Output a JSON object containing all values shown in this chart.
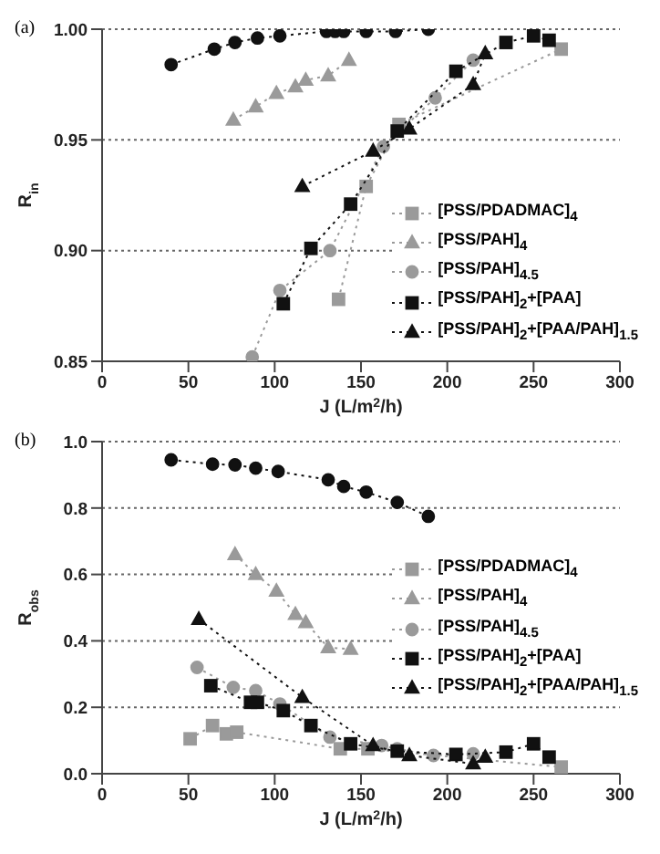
{
  "chart_data": [
    {
      "type": "line",
      "title": "(a)",
      "xlabel": "J (L/m$^{2}$/h)",
      "ylabel": "R$_{in}$",
      "xlim": [
        0,
        300
      ],
      "xticks": [
        0,
        50,
        100,
        150,
        200,
        250,
        300
      ],
      "ylim": [
        0.85,
        1.0
      ],
      "yticks": [
        {
          "value": 0.85,
          "label": "0.85"
        },
        {
          "value": 0.9,
          "label": "0.90"
        },
        {
          "value": 0.95,
          "label": "0.95"
        },
        {
          "value": 1.0,
          "label": "1.00"
        }
      ],
      "grid": "y",
      "legend": "bottom right",
      "line_style": "dotted",
      "series": [
        {
          "color": "#111111",
          "marker": "circle",
          "x": [
            40,
            65,
            77,
            90,
            103,
            130,
            135,
            140,
            153,
            170,
            189
          ],
          "values": [
            0.984,
            0.991,
            0.994,
            0.996,
            0.997,
            0.999,
            0.999,
            0.999,
            0.999,
            0.999,
            1.0
          ]
        },
        {
          "name": "[PSS/PDADMAC]$_{4}$",
          "color": "#9a9a9a",
          "marker": "square",
          "x": [
            137,
            153,
            172,
            266
          ],
          "values": [
            0.878,
            0.929,
            0.957,
            0.991
          ]
        },
        {
          "name": "[PSS/PAH]$_{4}$",
          "color": "#9a9a9a",
          "marker": "triangle",
          "x": [
            76,
            89,
            101,
            112,
            118,
            131,
            143
          ],
          "values": [
            0.959,
            0.965,
            0.971,
            0.974,
            0.977,
            0.979,
            0.986
          ]
        },
        {
          "name": "[PSS/PAH]$_{4.5}$",
          "color": "#9a9a9a",
          "marker": "circle",
          "x": [
            87,
            103,
            132,
            163,
            193,
            215
          ],
          "values": [
            0.852,
            0.882,
            0.9,
            0.947,
            0.969,
            0.986
          ]
        },
        {
          "name": "[PSS/PAH]$_{2}$+[PAA]",
          "color": "#111111",
          "marker": "square",
          "x": [
            105,
            121,
            144,
            171,
            205,
            234,
            250,
            259
          ],
          "values": [
            0.876,
            0.901,
            0.921,
            0.954,
            0.981,
            0.994,
            0.997,
            0.995
          ]
        },
        {
          "name": "[PSS/PAH]$_{2}$+[PAA/PAH]$_{1.5}$",
          "color": "#111111",
          "marker": "triangle",
          "x": [
            116,
            157,
            178,
            215,
            222
          ],
          "values": [
            0.929,
            0.945,
            0.955,
            0.975,
            0.989
          ]
        }
      ]
    },
    {
      "type": "line",
      "title": "(b)",
      "xlabel": "J (L/m$^{2}$/h)",
      "ylabel": "R$_{obs}$",
      "xlim": [
        0,
        300
      ],
      "xticks": [
        0,
        50,
        100,
        150,
        200,
        250,
        300
      ],
      "ylim": [
        0,
        1.0
      ],
      "yticks": [
        {
          "value": 0,
          "label": "0.0"
        },
        {
          "value": 0.2,
          "label": "0.2"
        },
        {
          "value": 0.4,
          "label": "0.4"
        },
        {
          "value": 0.6,
          "label": "0.6"
        },
        {
          "value": 0.8,
          "label": "0.8"
        },
        {
          "value": 1.0,
          "label": "1.0"
        }
      ],
      "grid": "y",
      "legend": "right",
      "line_style": "dotted",
      "series": [
        {
          "color": "#111111",
          "marker": "circle",
          "x": [
            40,
            64,
            77,
            89,
            102,
            131,
            140,
            153,
            171,
            189
          ],
          "values": [
            0.945,
            0.932,
            0.93,
            0.92,
            0.91,
            0.885,
            0.865,
            0.848,
            0.817,
            0.775
          ]
        },
        {
          "name": "[PSS/PDADMAC]$_{4}$",
          "color": "#9a9a9a",
          "marker": "square",
          "x": [
            51,
            64,
            72,
            78,
            138,
            154,
            266
          ],
          "values": [
            0.105,
            0.145,
            0.12,
            0.125,
            0.075,
            0.075,
            0.02
          ]
        },
        {
          "name": "[PSS/PAH]$_{4}$",
          "color": "#9a9a9a",
          "marker": "triangle",
          "x": [
            77,
            89,
            101,
            112,
            118,
            131,
            144
          ],
          "values": [
            0.66,
            0.6,
            0.55,
            0.48,
            0.455,
            0.38,
            0.375
          ]
        },
        {
          "name": "[PSS/PAH]$_{4.5}$",
          "color": "#9a9a9a",
          "marker": "circle",
          "x": [
            55,
            76,
            89,
            103,
            132,
            162,
            171,
            192,
            215
          ],
          "values": [
            0.32,
            0.26,
            0.25,
            0.21,
            0.11,
            0.085,
            0.075,
            0.055,
            0.06
          ]
        },
        {
          "name": "[PSS/PAH]$_{2}$+[PAA]",
          "color": "#111111",
          "marker": "square",
          "x": [
            63,
            86,
            90,
            105,
            121,
            144,
            171,
            205,
            234,
            250,
            259
          ],
          "values": [
            0.265,
            0.215,
            0.215,
            0.19,
            0.145,
            0.09,
            0.068,
            0.058,
            0.065,
            0.09,
            0.05
          ]
        },
        {
          "name": "[PSS/PAH]$_{2}$+[PAA/PAH]$_{1.5}$",
          "color": "#111111",
          "marker": "triangle",
          "x": [
            56,
            116,
            157,
            178,
            215,
            222
          ],
          "values": [
            0.465,
            0.23,
            0.085,
            0.055,
            0.03,
            0.05
          ]
        }
      ]
    }
  ]
}
